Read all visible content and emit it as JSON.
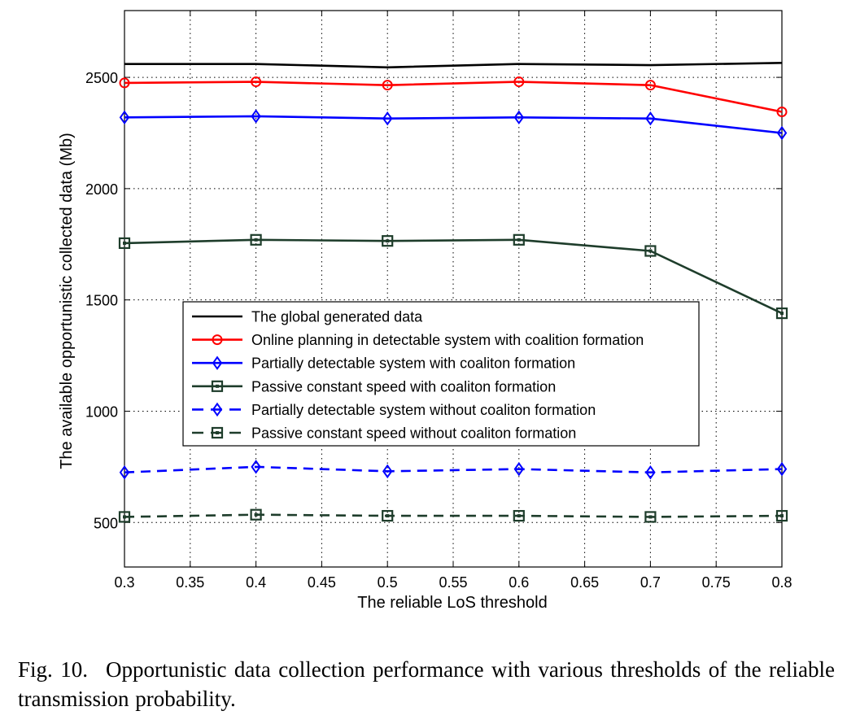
{
  "chart_data": {
    "type": "line",
    "title": "",
    "xlabel": "The reliable LoS threshold",
    "ylabel": "The available opportunistic collected data (Mb)",
    "xlim": [
      0.3,
      0.8
    ],
    "ylim": [
      300,
      2800
    ],
    "x_ticks": [
      "0.3",
      "0.35",
      "0.4",
      "0.45",
      "0.5",
      "0.55",
      "0.6",
      "0.65",
      "0.7",
      "0.75",
      "0.8"
    ],
    "x_tick_values": [
      0.3,
      0.35,
      0.4,
      0.45,
      0.5,
      0.55,
      0.6,
      0.65,
      0.7,
      0.75,
      0.8
    ],
    "y_ticks": [
      "500",
      "1000",
      "1500",
      "2000",
      "2500"
    ],
    "y_tick_values": [
      500,
      1000,
      1500,
      2000,
      2500
    ],
    "grid": true,
    "legend_position": "center-left",
    "x": [
      0.3,
      0.4,
      0.5,
      0.6,
      0.7,
      0.8
    ],
    "series": [
      {
        "name": "The global generated data",
        "color": "#000000",
        "dash": "solid",
        "marker": "none",
        "values": [
          2560,
          2560,
          2545,
          2560,
          2555,
          2565
        ]
      },
      {
        "name": "Online planning in detectable system with coalition formation",
        "color": "#ff0000",
        "dash": "solid",
        "marker": "circle",
        "values": [
          2475,
          2480,
          2465,
          2480,
          2465,
          2345
        ]
      },
      {
        "name": "Partially detectable system with coaliton formation",
        "color": "#0000ff",
        "dash": "solid",
        "marker": "diamond",
        "values": [
          2320,
          2325,
          2315,
          2320,
          2315,
          2250
        ]
      },
      {
        "name": "Passive constant speed with coaliton formation",
        "color": "#1e3d2b",
        "dash": "solid",
        "marker": "square",
        "values": [
          1755,
          1770,
          1765,
          1770,
          1720,
          1440
        ]
      },
      {
        "name": "Partially detectable system without coaliton formation",
        "color": "#0000ff",
        "dash": "dashed",
        "marker": "diamond",
        "values": [
          725,
          750,
          730,
          740,
          725,
          740
        ]
      },
      {
        "name": "Passive constant speed without coaliton formation",
        "color": "#1e3d2b",
        "dash": "dashed",
        "marker": "square",
        "values": [
          525,
          535,
          530,
          530,
          525,
          530
        ]
      }
    ]
  },
  "caption": {
    "label": "Fig. 10.",
    "text": "Opportunistic data collection performance with various thresholds of the reliable transmission probability."
  }
}
